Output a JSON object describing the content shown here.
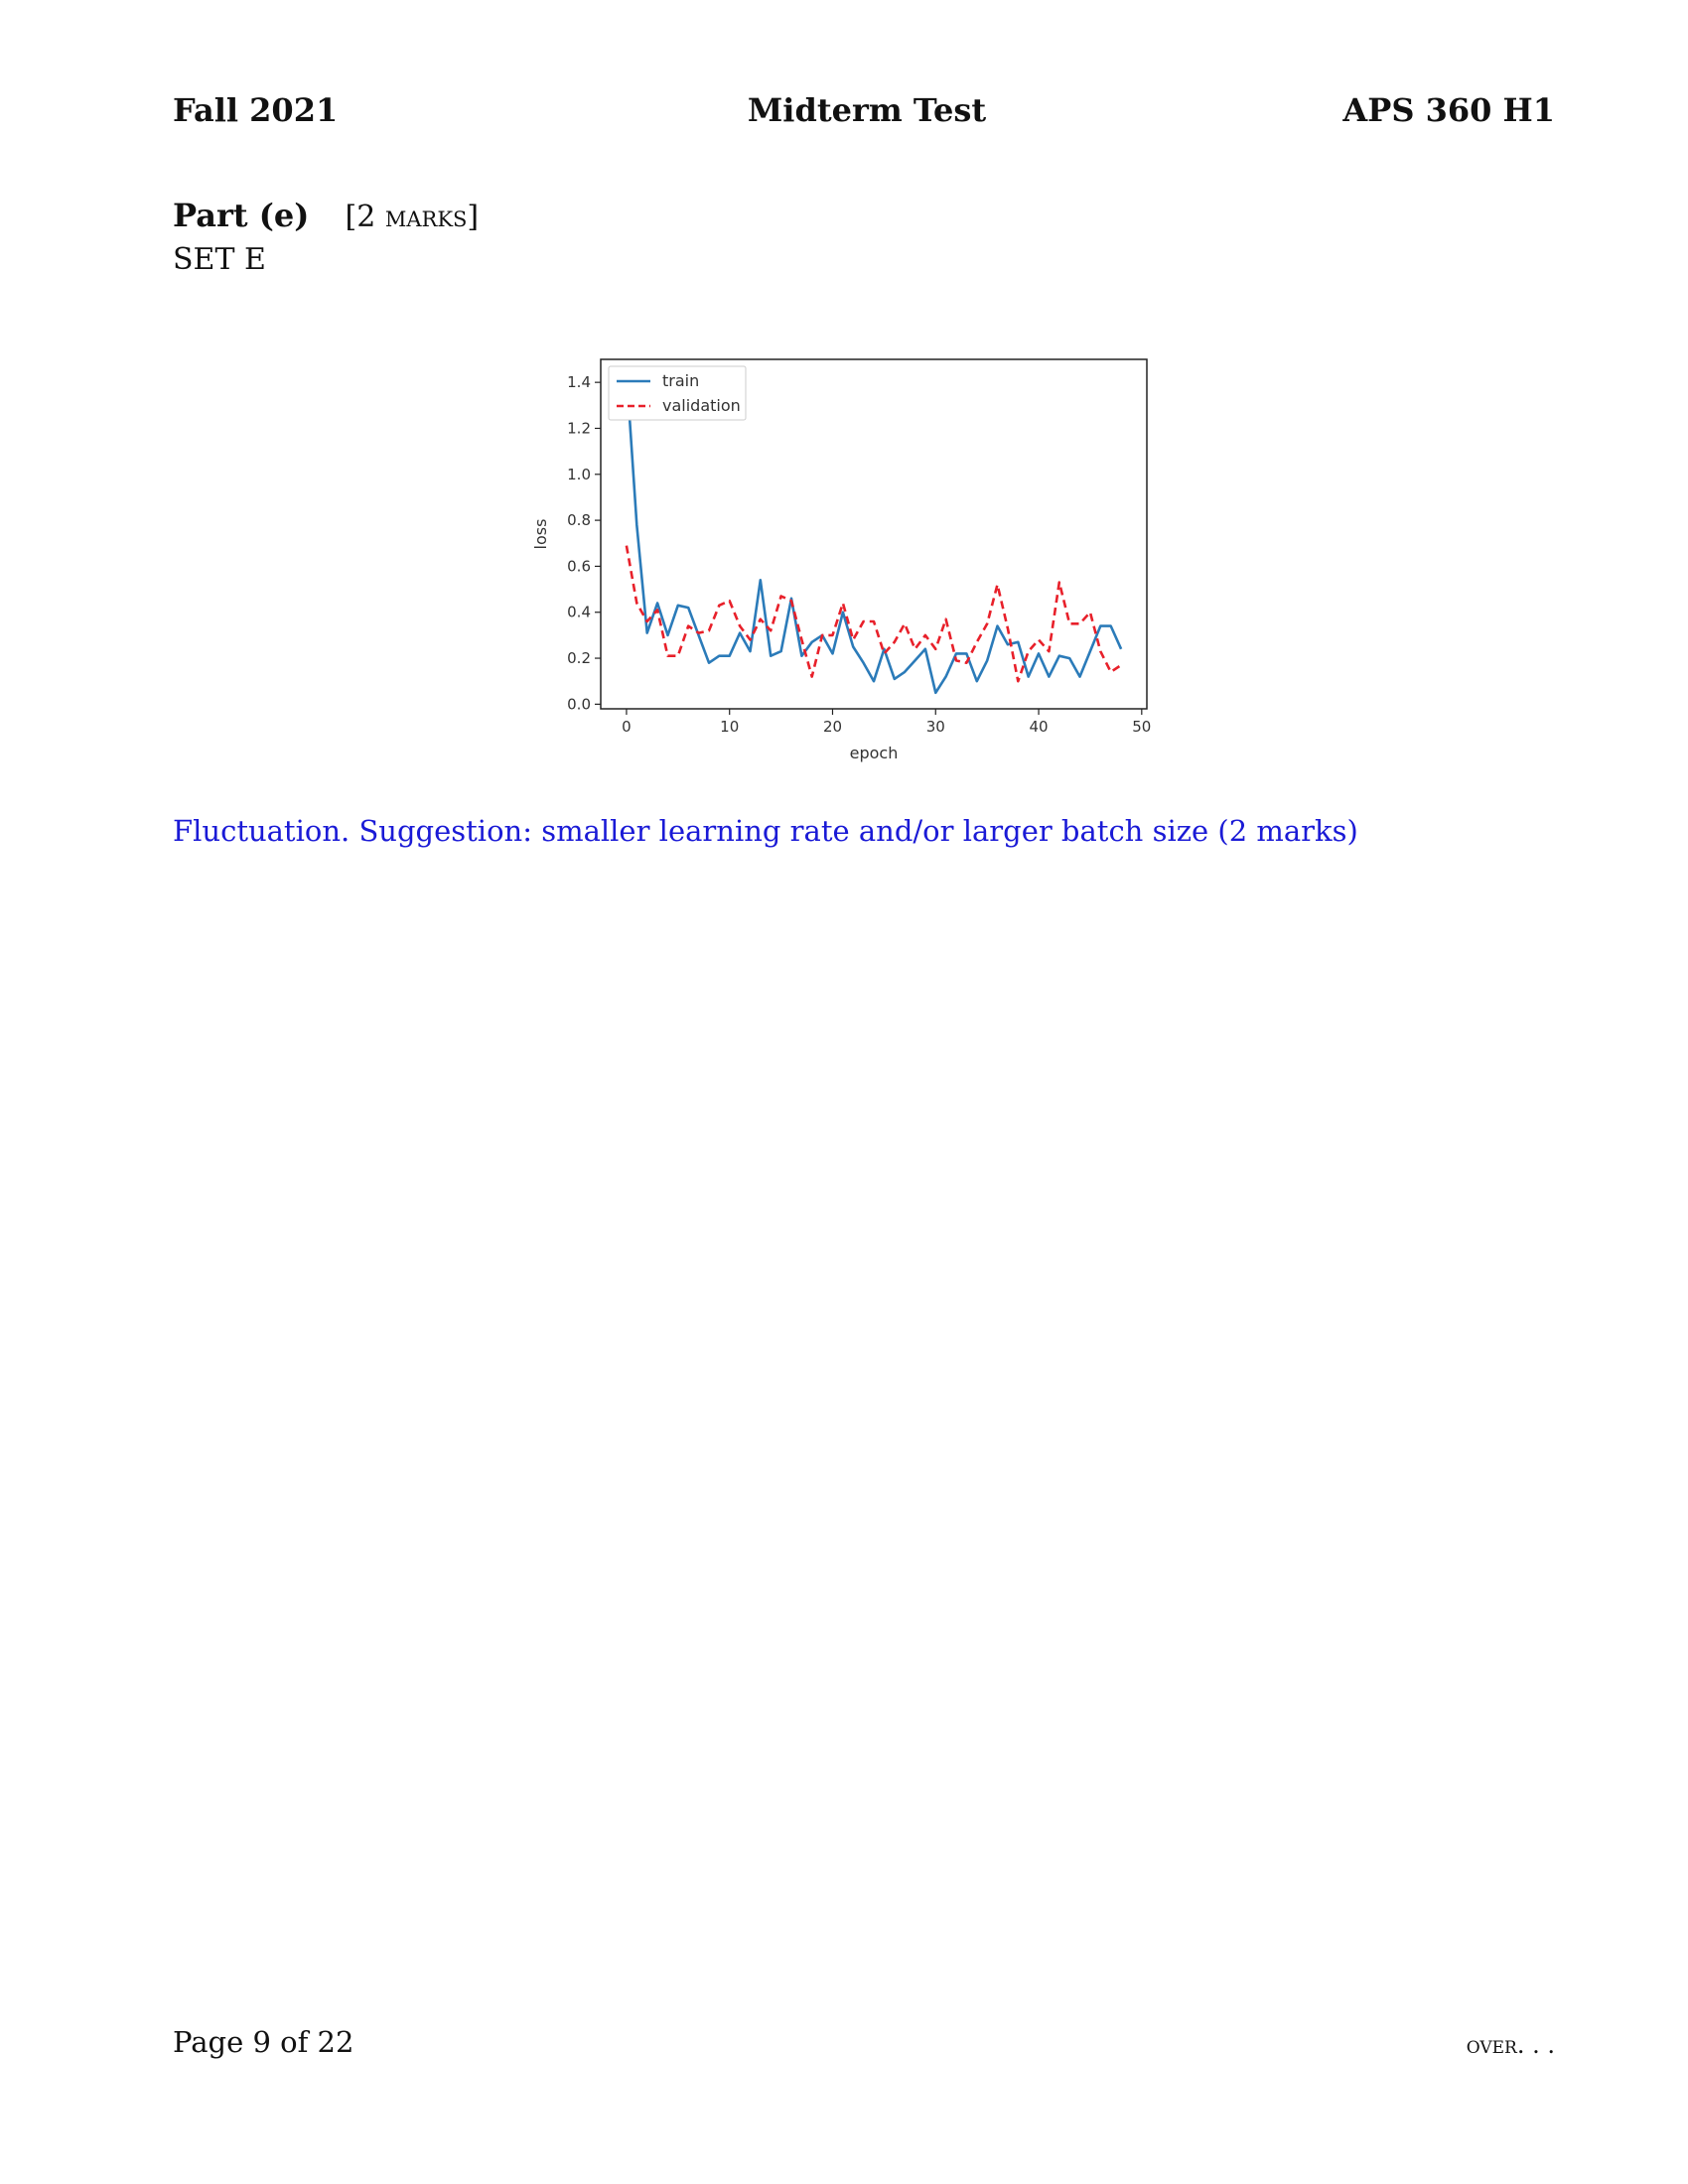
{
  "header": {
    "left": "Fall 2021",
    "center": "Midterm Test",
    "right": "APS 360 H1"
  },
  "part": {
    "title": "Part (e)",
    "marks": "[2 marks]",
    "set": "SET E"
  },
  "chart_data": {
    "type": "line",
    "title": "",
    "xlabel": "epoch",
    "ylabel": "loss",
    "xlim": [
      -2.5,
      50.5
    ],
    "ylim": [
      -0.02,
      1.5
    ],
    "xticks": [
      0,
      10,
      20,
      30,
      40,
      50
    ],
    "yticks": [
      0.0,
      0.2,
      0.4,
      0.6,
      0.8,
      1.0,
      1.2,
      1.4
    ],
    "grid": false,
    "legend_position": "upper-left",
    "x": [
      0,
      1,
      2,
      3,
      4,
      5,
      6,
      7,
      8,
      9,
      10,
      11,
      12,
      13,
      14,
      15,
      16,
      17,
      18,
      19,
      20,
      21,
      22,
      23,
      24,
      25,
      26,
      27,
      28,
      29,
      30,
      31,
      32,
      33,
      34,
      35,
      36,
      37,
      38,
      39,
      40,
      41,
      42,
      43,
      44,
      45,
      46,
      47,
      48
    ],
    "series": [
      {
        "name": "train",
        "color": "#2b7bb9",
        "style": "solid",
        "values": [
          1.45,
          0.78,
          0.31,
          0.44,
          0.3,
          0.43,
          0.42,
          0.3,
          0.18,
          0.21,
          0.21,
          0.31,
          0.23,
          0.54,
          0.21,
          0.23,
          0.46,
          0.21,
          0.27,
          0.3,
          0.22,
          0.4,
          0.25,
          0.18,
          0.1,
          0.24,
          0.11,
          0.14,
          0.19,
          0.24,
          0.05,
          0.12,
          0.22,
          0.22,
          0.1,
          0.19,
          0.34,
          0.26,
          0.27,
          0.12,
          0.22,
          0.12,
          0.21,
          0.2,
          0.12,
          0.23,
          0.34,
          0.34,
          0.24
        ]
      },
      {
        "name": "validation",
        "color": "#e8202a",
        "style": "dashed",
        "values": [
          0.69,
          0.44,
          0.36,
          0.41,
          0.21,
          0.21,
          0.34,
          0.31,
          0.32,
          0.43,
          0.45,
          0.34,
          0.28,
          0.37,
          0.32,
          0.47,
          0.45,
          0.28,
          0.12,
          0.3,
          0.3,
          0.44,
          0.28,
          0.36,
          0.36,
          0.22,
          0.27,
          0.35,
          0.24,
          0.3,
          0.24,
          0.37,
          0.19,
          0.18,
          0.27,
          0.35,
          0.52,
          0.33,
          0.1,
          0.23,
          0.28,
          0.23,
          0.53,
          0.35,
          0.35,
          0.4,
          0.23,
          0.14,
          0.17
        ]
      }
    ]
  },
  "answer": "Fluctuation. Suggestion: smaller learning rate and/or larger batch size (2 marks)",
  "footer": {
    "page": "Page 9 of 22",
    "over": "over. . ."
  }
}
